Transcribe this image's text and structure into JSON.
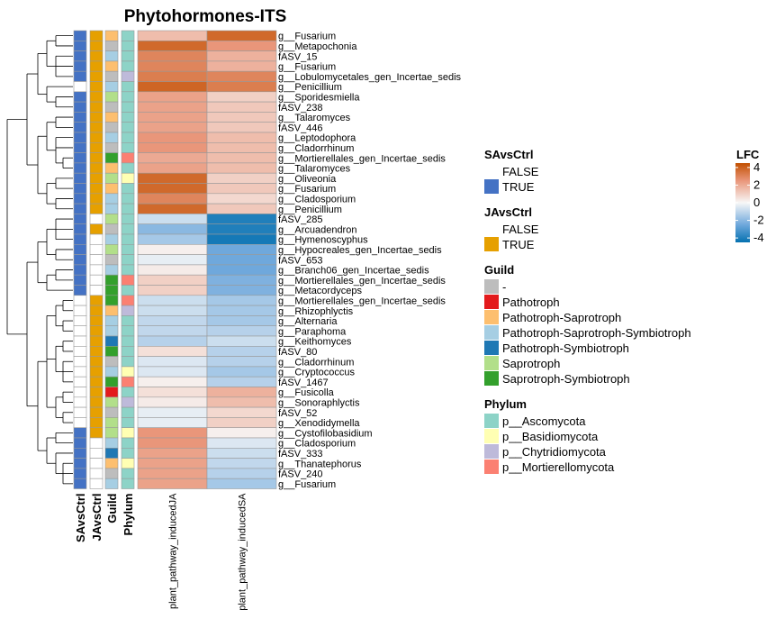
{
  "chart_data": {
    "type": "heatmap",
    "title": "Phytohormones-ITS",
    "columns": [
      "plant_pathway_inducedJA",
      "plant_pathway_inducedSA"
    ],
    "annotation_tracks": [
      "SAvsCtrl",
      "JAvsCtrl",
      "Guild",
      "Phylum"
    ],
    "rows": [
      {
        "label": "g__Fusarium",
        "SA": "TRUE",
        "JA": "TRUE",
        "guild": "Pathotroph-Saprotroph",
        "phylum": "p__Ascomycota",
        "values": [
          1.5,
          3.8
        ]
      },
      {
        "label": "g__Metapochonia",
        "SA": "TRUE",
        "JA": "TRUE",
        "guild": "-",
        "phylum": "p__Ascomycota",
        "values": [
          3.8,
          2.5
        ]
      },
      {
        "label": "fASV_15",
        "SA": "TRUE",
        "JA": "TRUE",
        "guild": "Pathotroph-Saprotroph-Symbiotroph",
        "phylum": "p__Ascomycota",
        "values": [
          3.0,
          1.8
        ]
      },
      {
        "label": "g__Fusarium",
        "SA": "TRUE",
        "JA": "TRUE",
        "guild": "Pathotroph-Saprotroph",
        "phylum": "p__Ascomycota",
        "values": [
          3.0,
          1.8
        ]
      },
      {
        "label": "g__Lobulomycetales_gen_Incertae_sedis",
        "SA": "TRUE",
        "JA": "TRUE",
        "guild": "-",
        "phylum": "p__Chytridiomycota",
        "values": [
          3.2,
          3.0
        ]
      },
      {
        "label": "g__Penicillium",
        "SA": "FALSE",
        "JA": "TRUE",
        "guild": "Pathotroph-Saprotroph-Symbiotroph",
        "phylum": "p__Ascomycota",
        "values": [
          3.9,
          3.2
        ]
      },
      {
        "label": "g__Sporidesmiella",
        "SA": "TRUE",
        "JA": "TRUE",
        "guild": "Saprotroph",
        "phylum": "p__Ascomycota",
        "values": [
          2.2,
          1.0
        ]
      },
      {
        "label": "fASV_238",
        "SA": "TRUE",
        "JA": "TRUE",
        "guild": "-",
        "phylum": "p__Ascomycota",
        "values": [
          2.2,
          1.2
        ]
      },
      {
        "label": "g__Talaromyces",
        "SA": "TRUE",
        "JA": "TRUE",
        "guild": "Pathotroph-Saprotroph",
        "phylum": "p__Ascomycota",
        "values": [
          2.2,
          1.2
        ]
      },
      {
        "label": "fASV_446",
        "SA": "TRUE",
        "JA": "TRUE",
        "guild": "-",
        "phylum": "p__Ascomycota",
        "values": [
          2.2,
          1.2
        ]
      },
      {
        "label": "g__Leptodophora",
        "SA": "TRUE",
        "JA": "TRUE",
        "guild": "Pathotroph-Saprotroph-Symbiotroph",
        "phylum": "p__Ascomycota",
        "values": [
          2.5,
          1.5
        ]
      },
      {
        "label": "g__Cladorrhinum",
        "SA": "TRUE",
        "JA": "TRUE",
        "guild": "-",
        "phylum": "p__Ascomycota",
        "values": [
          2.5,
          1.5
        ]
      },
      {
        "label": "g__Mortierellales_gen_Incertae_sedis",
        "SA": "TRUE",
        "JA": "TRUE",
        "guild": "Saprotroph-Symbiotroph",
        "phylum": "p__Mortierellomycota",
        "values": [
          2.0,
          1.5
        ]
      },
      {
        "label": "g__Talaromyces",
        "SA": "TRUE",
        "JA": "TRUE",
        "guild": "Pathotroph-Saprotroph",
        "phylum": "p__Ascomycota",
        "values": [
          2.2,
          1.5
        ]
      },
      {
        "label": "g__Oliveonia",
        "SA": "TRUE",
        "JA": "TRUE",
        "guild": "Saprotroph",
        "phylum": "p__Basidiomycota",
        "values": [
          3.8,
          1.0
        ]
      },
      {
        "label": "g__Fusarium",
        "SA": "TRUE",
        "JA": "TRUE",
        "guild": "Pathotroph-Saprotroph",
        "phylum": "p__Ascomycota",
        "values": [
          3.8,
          1.2
        ]
      },
      {
        "label": "g__Cladosporium",
        "SA": "TRUE",
        "JA": "TRUE",
        "guild": "Pathotroph-Saprotroph-Symbiotroph",
        "phylum": "p__Ascomycota",
        "values": [
          3.0,
          0.8
        ]
      },
      {
        "label": "g__Penicillium",
        "SA": "TRUE",
        "JA": "TRUE",
        "guild": "Pathotroph-Saprotroph-Symbiotroph",
        "phylum": "p__Ascomycota",
        "values": [
          3.8,
          1.2
        ]
      },
      {
        "label": "fASV_285",
        "SA": "TRUE",
        "JA": "FALSE",
        "guild": "Saprotroph",
        "phylum": "p__Ascomycota",
        "values": [
          -0.8,
          -4.0
        ]
      },
      {
        "label": "g__Arcuadendron",
        "SA": "TRUE",
        "JA": "TRUE",
        "guild": "-",
        "phylum": "p__Ascomycota",
        "values": [
          -2.0,
          -4.0
        ]
      },
      {
        "label": "g__Hymenoscyphus",
        "SA": "TRUE",
        "JA": "FALSE",
        "guild": "Pathotroph-Saprotroph-Symbiotroph",
        "phylum": "p__Ascomycota",
        "values": [
          -1.5,
          -4.2
        ]
      },
      {
        "label": "g__Hypocreales_gen_Incertae_sedis",
        "SA": "TRUE",
        "JA": "FALSE",
        "guild": "Saprotroph",
        "phylum": "p__Ascomycota",
        "values": [
          0.2,
          -2.5
        ]
      },
      {
        "label": "fASV_653",
        "SA": "TRUE",
        "JA": "FALSE",
        "guild": "-",
        "phylum": "p__Ascomycota",
        "values": [
          -0.3,
          -2.5
        ]
      },
      {
        "label": "g__Branch06_gen_Incertae_sedis",
        "SA": "TRUE",
        "JA": "FALSE",
        "guild": "Pathotroph-Saprotroph-Symbiotroph",
        "phylum": "p__Ascomycota",
        "values": [
          0.3,
          -2.5
        ]
      },
      {
        "label": "g__Mortierellales_gen_Incertae_sedis",
        "SA": "TRUE",
        "JA": "FALSE",
        "guild": "Saprotroph-Symbiotroph",
        "phylum": "p__Mortierellomycota",
        "values": [
          1.0,
          -2.2
        ]
      },
      {
        "label": "g__Metacordyceps",
        "SA": "TRUE",
        "JA": "FALSE",
        "guild": "Saprotroph-Symbiotroph",
        "phylum": "p__Ascomycota",
        "values": [
          1.0,
          -2.2
        ]
      },
      {
        "label": "g__Mortierellales_gen_Incertae_sedis",
        "SA": "FALSE",
        "JA": "TRUE",
        "guild": "Saprotroph-Symbiotroph",
        "phylum": "p__Mortierellomycota",
        "values": [
          -0.8,
          -1.5
        ]
      },
      {
        "label": "g__Rhizophlyctis",
        "SA": "FALSE",
        "JA": "TRUE",
        "guild": "Pathotroph-Saprotroph",
        "phylum": "p__Chytridiomycota",
        "values": [
          -0.8,
          -1.5
        ]
      },
      {
        "label": "g__Alternaria",
        "SA": "FALSE",
        "JA": "TRUE",
        "guild": "Pathotroph-Saprotroph-Symbiotroph",
        "phylum": "p__Ascomycota",
        "values": [
          -1.0,
          -1.5
        ]
      },
      {
        "label": "g__Paraphoma",
        "SA": "FALSE",
        "JA": "TRUE",
        "guild": "Pathotroph-Saprotroph-Symbiotroph",
        "phylum": "p__Ascomycota",
        "values": [
          -1.0,
          -1.2
        ]
      },
      {
        "label": "g__Keithomyces",
        "SA": "FALSE",
        "JA": "TRUE",
        "guild": "Pathotroph-Symbiotroph",
        "phylum": "p__Ascomycota",
        "values": [
          -1.2,
          -0.8
        ]
      },
      {
        "label": "fASV_80",
        "SA": "FALSE",
        "JA": "TRUE",
        "guild": "Saprotroph-Symbiotroph",
        "phylum": "p__Ascomycota",
        "values": [
          0.6,
          -1.2
        ]
      },
      {
        "label": "g__Cladorrhinum",
        "SA": "FALSE",
        "JA": "TRUE",
        "guild": "-",
        "phylum": "p__Ascomycota",
        "values": [
          -0.5,
          -1.2
        ]
      },
      {
        "label": "g__Cryptococcus",
        "SA": "FALSE",
        "JA": "TRUE",
        "guild": "Pathotroph-Saprotroph-Symbiotroph",
        "phylum": "p__Basidiomycota",
        "values": [
          -0.5,
          -1.5
        ]
      },
      {
        "label": "fASV_1467",
        "SA": "FALSE",
        "JA": "TRUE",
        "guild": "Saprotroph-Symbiotroph",
        "phylum": "p__Mortierellomycota",
        "values": [
          0.2,
          -1.2
        ]
      },
      {
        "label": "g__Fusicolla",
        "SA": "FALSE",
        "JA": "TRUE",
        "guild": "Pathotroph",
        "phylum": "p__Ascomycota",
        "values": [
          0.6,
          1.8
        ]
      },
      {
        "label": "g__Sonoraphlyctis",
        "SA": "FALSE",
        "JA": "TRUE",
        "guild": "Saprotroph",
        "phylum": "p__Chytridiomycota",
        "values": [
          0.3,
          1.5
        ]
      },
      {
        "label": "fASV_52",
        "SA": "FALSE",
        "JA": "TRUE",
        "guild": "-",
        "phylum": "p__Ascomycota",
        "values": [
          -0.3,
          0.8
        ]
      },
      {
        "label": "g__Xenodidymella",
        "SA": "FALSE",
        "JA": "TRUE",
        "guild": "Saprotroph",
        "phylum": "p__Ascomycota",
        "values": [
          -0.3,
          1.0
        ]
      },
      {
        "label": "g__Cystofilobasidium",
        "SA": "TRUE",
        "JA": "TRUE",
        "guild": "Saprotroph",
        "phylum": "p__Basidiomycota",
        "values": [
          2.5,
          0.2
        ]
      },
      {
        "label": "g__Cladosporium",
        "SA": "TRUE",
        "JA": "FALSE",
        "guild": "Pathotroph-Saprotroph-Symbiotroph",
        "phylum": "p__Ascomycota",
        "values": [
          2.5,
          -0.5
        ]
      },
      {
        "label": "fASV_333",
        "SA": "TRUE",
        "JA": "FALSE",
        "guild": "Pathotroph-Symbiotroph",
        "phylum": "p__Ascomycota",
        "values": [
          2.2,
          -0.8
        ]
      },
      {
        "label": "g__Thanatephorus",
        "SA": "TRUE",
        "JA": "FALSE",
        "guild": "Pathotroph-Saprotroph",
        "phylum": "p__Basidiomycota",
        "values": [
          2.2,
          -1.0
        ]
      },
      {
        "label": "fASV_240",
        "SA": "TRUE",
        "JA": "FALSE",
        "guild": "-",
        "phylum": "p__Ascomycota",
        "values": [
          2.2,
          -1.2
        ]
      },
      {
        "label": "g__Fusarium",
        "SA": "TRUE",
        "JA": "FALSE",
        "guild": "Pathotroph-Saprotroph-Symbiotroph",
        "phylum": "p__Ascomycota",
        "values": [
          2.2,
          -1.5
        ]
      }
    ],
    "legends": [
      {
        "key": "SA",
        "title": "SAvsCtrl",
        "levels": [
          {
            "label": "FALSE",
            "color": "#ffffff"
          },
          {
            "label": "TRUE",
            "color": "#4472c4"
          }
        ]
      },
      {
        "key": "JA",
        "title": "JAvsCtrl",
        "levels": [
          {
            "label": "FALSE",
            "color": "#ffffff"
          },
          {
            "label": "TRUE",
            "color": "#e6a000"
          }
        ]
      },
      {
        "key": "guild",
        "title": "Guild",
        "levels": [
          {
            "label": "-",
            "color": "#bdbdbd"
          },
          {
            "label": "Pathotroph",
            "color": "#e31a1c"
          },
          {
            "label": "Pathotroph-Saprotroph",
            "color": "#fdbf6f"
          },
          {
            "label": "Pathotroph-Saprotroph-Symbiotroph",
            "color": "#a6cee3"
          },
          {
            "label": "Pathotroph-Symbiotroph",
            "color": "#1f78b4"
          },
          {
            "label": "Saprotroph",
            "color": "#b2df8a"
          },
          {
            "label": "Saprotroph-Symbiotroph",
            "color": "#33a02c"
          }
        ]
      },
      {
        "key": "phylum",
        "title": "Phylum",
        "levels": [
          {
            "label": "p__Ascomycota",
            "color": "#8dd3c7"
          },
          {
            "label": "p__Basidiomycota",
            "color": "#ffffb3"
          },
          {
            "label": "p__Chytridiomycota",
            "color": "#bebada"
          },
          {
            "label": "p__Mortierellomycota",
            "color": "#fb8072"
          }
        ]
      }
    ],
    "color_scale": {
      "title": "LFC",
      "ticks": [
        4,
        2,
        0,
        -2,
        -4
      ],
      "min": -4.5,
      "max": 4.5,
      "stops": [
        {
          "value": -4.5,
          "color": "#0571b0"
        },
        {
          "value": -2.5,
          "color": "#6fa8dc"
        },
        {
          "value": 0,
          "color": "#f7f7f7"
        },
        {
          "value": 2.5,
          "color": "#e9967a"
        },
        {
          "value": 4.5,
          "color": "#c25000"
        }
      ]
    }
  }
}
